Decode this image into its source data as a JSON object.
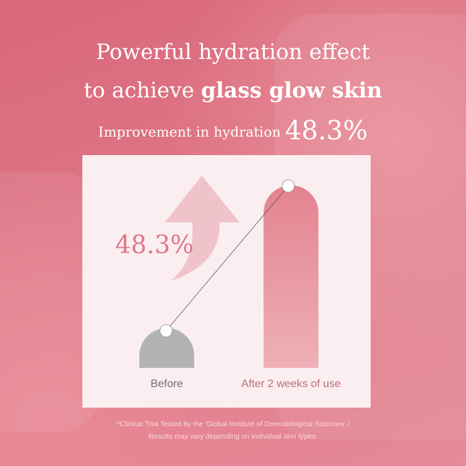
{
  "headline": {
    "line1": "Powerful hydration effect",
    "line2_prefix": "to achieve ",
    "line2_bold": "glass glow skin",
    "subline_text": "Improvement in hydration",
    "subline_value": "48.3%"
  },
  "chart_data": {
    "type": "bar",
    "categories": [
      "Before",
      "After 2 weeks of use"
    ],
    "annotation": "48.3%",
    "colors": {
      "before": "#b3b3b3",
      "after": "#e3838f",
      "arrow": "#f0c2c9",
      "annotation": "#e07888"
    }
  },
  "footnote": {
    "line1": "*Clinical Trial Tested by the 'Global Institute of Dermatological Sciences' /",
    "line2": "Results may vary depending on individual skin types."
  }
}
